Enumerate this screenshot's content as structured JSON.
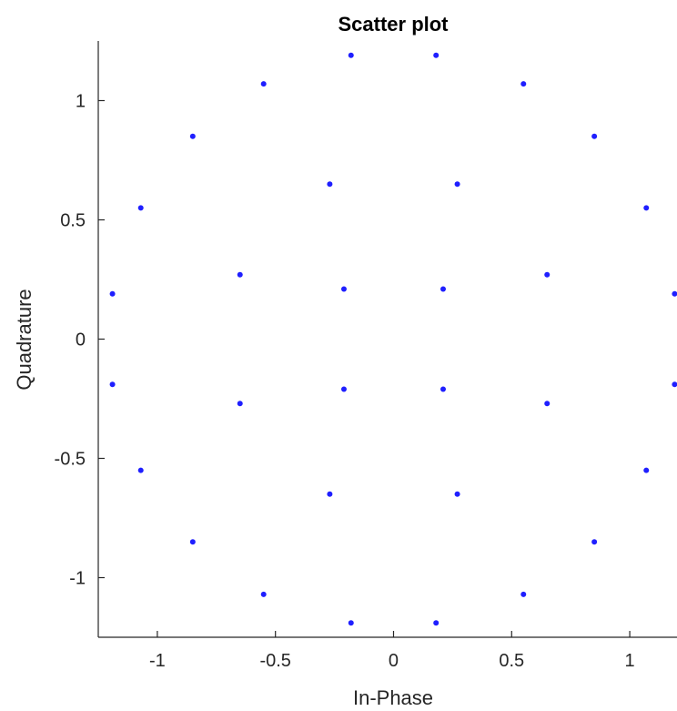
{
  "chart_data": {
    "type": "scatter",
    "title": "Scatter plot",
    "xlabel": "In-Phase",
    "ylabel": "Quadrature",
    "xlim": [
      -1.25,
      1.2
    ],
    "ylim": [
      -1.25,
      1.25
    ],
    "xticks": [
      -1,
      -0.5,
      0,
      0.5,
      1
    ],
    "xtick_labels": [
      "-1",
      "-0.5",
      "0",
      "0.5",
      "1"
    ],
    "yticks": [
      -1,
      -0.5,
      0,
      0.5,
      1
    ],
    "ytick_labels": [
      "-1",
      "-0.5",
      "0",
      "0.5",
      "1"
    ],
    "grid": false,
    "marker_color": "#1f1fff",
    "axis_color": "#262626",
    "points": [
      {
        "x": -0.18,
        "y": 1.19
      },
      {
        "x": 0.18,
        "y": 1.19
      },
      {
        "x": -0.55,
        "y": 1.07
      },
      {
        "x": 0.55,
        "y": 1.07
      },
      {
        "x": -0.85,
        "y": 0.85
      },
      {
        "x": 0.85,
        "y": 0.85
      },
      {
        "x": -0.27,
        "y": 0.65
      },
      {
        "x": 0.27,
        "y": 0.65
      },
      {
        "x": -1.07,
        "y": 0.55
      },
      {
        "x": 1.07,
        "y": 0.55
      },
      {
        "x": -0.65,
        "y": 0.27
      },
      {
        "x": 0.65,
        "y": 0.27
      },
      {
        "x": -0.21,
        "y": 0.21
      },
      {
        "x": 0.21,
        "y": 0.21
      },
      {
        "x": -1.19,
        "y": 0.19
      },
      {
        "x": 1.19,
        "y": 0.19
      },
      {
        "x": -1.19,
        "y": -0.19
      },
      {
        "x": 1.19,
        "y": -0.19
      },
      {
        "x": -0.21,
        "y": -0.21
      },
      {
        "x": 0.21,
        "y": -0.21
      },
      {
        "x": -0.65,
        "y": -0.27
      },
      {
        "x": 0.65,
        "y": -0.27
      },
      {
        "x": -1.07,
        "y": -0.55
      },
      {
        "x": 1.07,
        "y": -0.55
      },
      {
        "x": -0.27,
        "y": -0.65
      },
      {
        "x": 0.27,
        "y": -0.65
      },
      {
        "x": -0.85,
        "y": -0.85
      },
      {
        "x": 0.85,
        "y": -0.85
      },
      {
        "x": -0.55,
        "y": -1.07
      },
      {
        "x": 0.55,
        "y": -1.07
      },
      {
        "x": -0.18,
        "y": -1.19
      },
      {
        "x": 0.18,
        "y": -1.19
      }
    ]
  }
}
